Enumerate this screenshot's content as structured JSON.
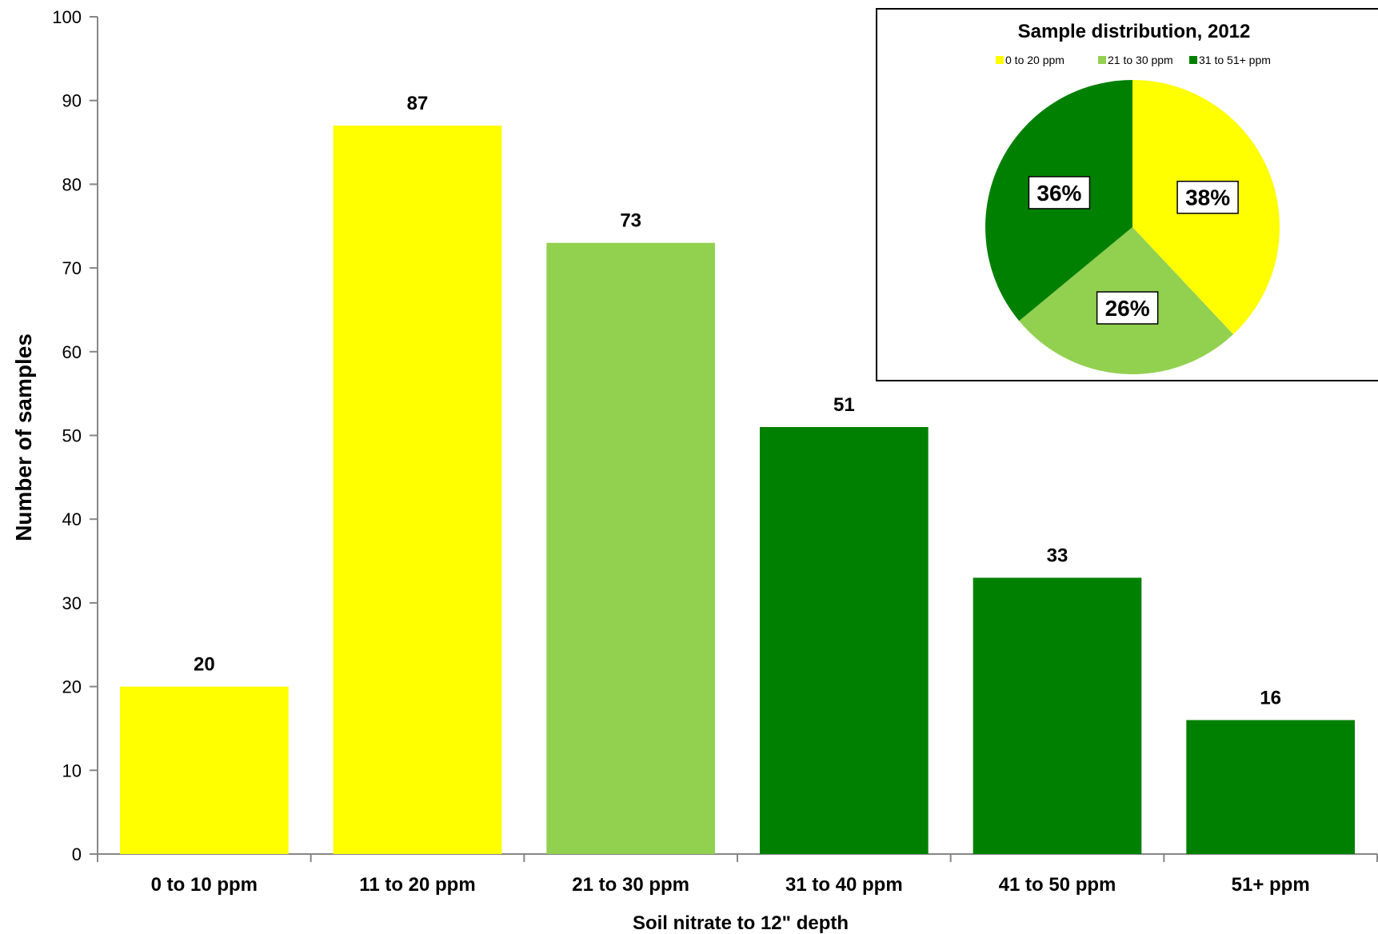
{
  "chart_data": [
    {
      "type": "bar",
      "title": "",
      "xlabel": "Soil nitrate to 12\" depth",
      "ylabel": "Number of samples",
      "ylim": [
        0,
        100
      ],
      "yticks": [
        "0",
        "10",
        "20",
        "30",
        "40",
        "50",
        "60",
        "70",
        "80",
        "90",
        "100"
      ],
      "categories": [
        "0 to 10 ppm",
        "11 to 20 ppm",
        "21 to 30 ppm",
        "31 to 40 ppm",
        "41 to 50 ppm",
        "51+ ppm"
      ],
      "values": [
        20,
        87,
        73,
        51,
        33,
        16
      ],
      "data_labels": [
        "20",
        "87",
        "73",
        "51",
        "33",
        "16"
      ],
      "bar_colors": [
        "#ffff00",
        "#ffff00",
        "#92d050",
        "#008000",
        "#008000",
        "#008000"
      ],
      "grid": false,
      "legend": "none"
    },
    {
      "type": "pie",
      "title": "Sample distribution, 2012",
      "legend_position": "top",
      "labels": [
        "0 to 20 ppm",
        "21 to 30 ppm",
        "31 to 51+ ppm"
      ],
      "values": [
        38,
        26,
        36
      ],
      "data_labels": [
        "38%",
        "26%",
        "36%"
      ],
      "colors": [
        "#ffff00",
        "#92d050",
        "#008000"
      ]
    }
  ]
}
